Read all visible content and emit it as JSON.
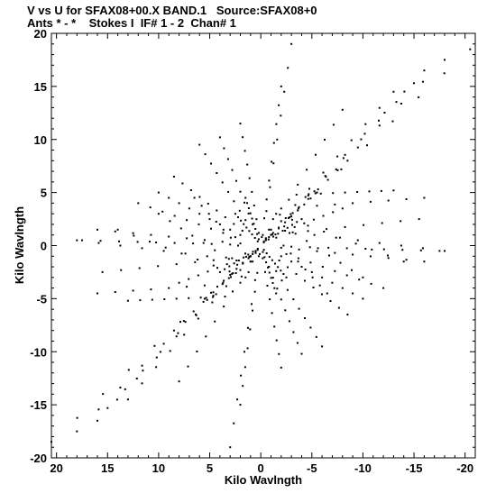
{
  "header": {
    "line1": "V vs U for SFAX08+00.X BAND.1   Source:SFAX08+0",
    "line2": "Ants * - *    Stokes I  IF# 1 - 2  Chan# 1"
  },
  "chart_data": {
    "type": "scatter",
    "title": "V vs U for SFAX08+00.X BAND.1   Source:SFAX08+0",
    "subtitle": "Ants * - *    Stokes I  IF# 1 - 2  Chan# 1",
    "xlabel": "Kilo Wavlngth",
    "ylabel": "Kilo Wavlngth",
    "xlim": [
      20.5,
      -21
    ],
    "ylim": [
      -20,
      20
    ],
    "x_inverted": true,
    "x_ticks": [
      20,
      15,
      10,
      5,
      0,
      -5,
      -10,
      -15,
      -20
    ],
    "y_ticks": [
      20,
      15,
      10,
      5,
      0,
      -5,
      -10,
      -15,
      -20
    ],
    "x_tick_labels": [
      "20",
      "15",
      "10",
      "5",
      "0",
      "-5",
      "-10",
      "-15",
      "-20"
    ],
    "y_tick_labels": [
      "20",
      "15",
      "10",
      "5",
      "0",
      "-5",
      "-10",
      "-15",
      "-20"
    ],
    "grid": false,
    "baseline_tracks": [
      {
        "from": [
          -20.5,
          18.5
        ],
        "to": [
          -0.3,
          0.4
        ]
      },
      {
        "from": [
          20.5,
          -18.5
        ],
        "to": [
          0.3,
          -0.4
        ]
      },
      {
        "from": [
          -3,
          19
        ],
        "to": [
          -0.2,
          1.0
        ]
      },
      {
        "from": [
          3,
          -19
        ],
        "to": [
          0.2,
          -1.0
        ]
      },
      {
        "from": [
          -2,
          15
        ],
        "to": [
          -0.1,
          0.8
        ]
      },
      {
        "from": [
          2,
          -15
        ],
        "to": [
          0.1,
          -0.8
        ]
      },
      {
        "from": [
          -16,
          16.5
        ],
        "to": [
          -0.5,
          0.6
        ]
      },
      {
        "from": [
          16,
          -16.5
        ],
        "to": [
          0.5,
          -0.6
        ]
      },
      {
        "from": [
          -18,
          17.5
        ],
        "to": [
          -1.0,
          1.0
        ]
      },
      {
        "from": [
          18,
          -17.5
        ],
        "to": [
          1.0,
          -1.0
        ]
      },
      {
        "from": [
          -15,
          15.3
        ],
        "to": [
          -1.2,
          1.2
        ]
      },
      {
        "from": [
          15,
          -15.3
        ],
        "to": [
          1.2,
          -1.2
        ]
      },
      {
        "from": [
          -13,
          14.5
        ],
        "to": [
          -2.0,
          2.3
        ]
      },
      {
        "from": [
          13,
          -14.5
        ],
        "to": [
          2.0,
          -2.3
        ]
      },
      {
        "from": [
          -8,
          12.8
        ],
        "to": [
          -1.0,
          1.5
        ]
      },
      {
        "from": [
          8,
          -12.8
        ],
        "to": [
          1.0,
          -1.5
        ]
      },
      {
        "from": [
          -18,
          -0.5
        ],
        "to": [
          -1.0,
          1.5
        ]
      },
      {
        "from": [
          18,
          0.5
        ],
        "to": [
          1.0,
          -1.5
        ]
      },
      {
        "from": [
          -15.5,
          2.5
        ],
        "to": [
          -1.0,
          1.0
        ]
      },
      {
        "from": [
          15.5,
          -2.5
        ],
        "to": [
          1.0,
          -1.0
        ]
      },
      {
        "from": [
          -16,
          4.5
        ],
        "to": [
          -2.0,
          3.5
        ]
      },
      {
        "from": [
          16,
          -4.5
        ],
        "to": [
          2.0,
          -3.5
        ]
      },
      {
        "from": [
          -13,
          5.2
        ],
        "to": [
          -3.5,
          4.8
        ]
      },
      {
        "from": [
          13,
          -5.2
        ],
        "to": [
          3.5,
          -4.8
        ]
      },
      {
        "from": [
          -8,
          3.5
        ],
        "to": [
          -0.5,
          0.7
        ]
      },
      {
        "from": [
          8,
          -3.5
        ],
        "to": [
          0.5,
          -0.7
        ]
      },
      {
        "from": [
          -14,
          -1.5
        ],
        "to": [
          -1.5,
          3.0
        ]
      },
      {
        "from": [
          14,
          1.5
        ],
        "to": [
          1.5,
          -3.0
        ]
      },
      {
        "from": [
          -10,
          -3
        ],
        "to": [
          -1.2,
          2.5
        ]
      },
      {
        "from": [
          10,
          3
        ],
        "to": [
          1.2,
          -2.5
        ]
      },
      {
        "from": [
          -6.5,
          -4.5
        ],
        "to": [
          -0.8,
          1.5
        ]
      },
      {
        "from": [
          6.5,
          4.5
        ],
        "to": [
          0.8,
          -1.5
        ]
      },
      {
        "from": [
          -4,
          2.5
        ],
        "to": [
          -0.3,
          0.3
        ]
      },
      {
        "from": [
          4,
          -2.5
        ],
        "to": [
          0.3,
          -0.3
        ]
      },
      {
        "from": [
          2,
          11.5
        ],
        "to": [
          0.2,
          1.2
        ]
      },
      {
        "from": [
          -2,
          -11.5
        ],
        "to": [
          -0.2,
          -1.2
        ]
      },
      {
        "from": [
          4,
          10.2
        ],
        "to": [
          0.8,
          2.0
        ]
      },
      {
        "from": [
          -4,
          -10.2
        ],
        "to": [
          -0.8,
          -2.0
        ]
      },
      {
        "from": [
          6,
          9.5
        ],
        "to": [
          1.5,
          2.4
        ]
      },
      {
        "from": [
          -6,
          -9.5
        ],
        "to": [
          -1.5,
          -2.4
        ]
      },
      {
        "from": [
          8.5,
          6.5
        ],
        "to": [
          1.8,
          1.4
        ]
      },
      {
        "from": [
          -8.5,
          -6.5
        ],
        "to": [
          -1.8,
          -1.4
        ]
      },
      {
        "from": [
          10,
          5
        ],
        "to": [
          2.0,
          1.0
        ]
      },
      {
        "from": [
          -10,
          -5
        ],
        "to": [
          -2.0,
          -1.0
        ]
      },
      {
        "from": [
          12,
          4
        ],
        "to": [
          2.5,
          0.8
        ]
      },
      {
        "from": [
          -12,
          -4
        ],
        "to": [
          -2.5,
          -0.8
        ]
      },
      {
        "from": [
          16,
          1.5
        ],
        "to": [
          2.0,
          0.2
        ]
      },
      {
        "from": [
          -16,
          -1.5
        ],
        "to": [
          -2.0,
          -0.2
        ]
      },
      {
        "from": [
          17.5,
          0.5
        ],
        "to": [
          3.0,
          0.1
        ]
      },
      {
        "from": [
          -17.5,
          -0.5
        ],
        "to": [
          -3.0,
          -0.1
        ]
      },
      {
        "from": [
          1.5,
          4.5
        ],
        "to": [
          0.2,
          0.6
        ]
      },
      {
        "from": [
          -1.5,
          -4.5
        ],
        "to": [
          -0.2,
          -0.6
        ]
      },
      {
        "from": [
          2.5,
          3.0
        ],
        "to": [
          0.3,
          0.4
        ]
      },
      {
        "from": [
          -2.5,
          -3.0
        ],
        "to": [
          -0.3,
          -0.4
        ]
      },
      {
        "from": [
          5.5,
          -5.0
        ],
        "to": [
          0.5,
          -0.5
        ]
      },
      {
        "from": [
          -5.5,
          5.0
        ],
        "to": [
          -0.5,
          0.5
        ]
      },
      {
        "from": [
          -8.5,
          8.0
        ],
        "to": [
          -0.8,
          0.8
        ]
      },
      {
        "from": [
          8.5,
          -8.0
        ],
        "to": [
          0.8,
          -0.8
        ]
      }
    ],
    "points_per_track": 9
  }
}
